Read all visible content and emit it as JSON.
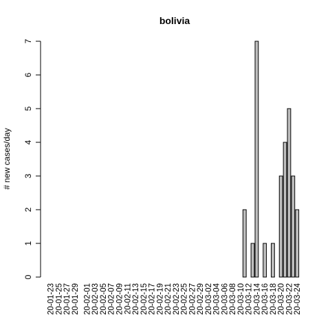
{
  "chart_data": {
    "type": "bar",
    "title": "bolivia",
    "xlabel": "",
    "ylabel": "# new cases/day",
    "ylim": [
      0,
      7
    ],
    "y_ticks": [
      0,
      1,
      2,
      3,
      4,
      5,
      6,
      7
    ],
    "grid": false,
    "categories": [
      "20-01-23",
      "20-01-24",
      "20-01-25",
      "20-01-26",
      "20-01-27",
      "20-01-28",
      "20-01-29",
      "20-01-30",
      "20-01-31",
      "20-02-01",
      "20-02-02",
      "20-02-03",
      "20-02-04",
      "20-02-05",
      "20-02-06",
      "20-02-07",
      "20-02-08",
      "20-02-09",
      "20-02-10",
      "20-02-11",
      "20-02-12",
      "20-02-13",
      "20-02-14",
      "20-02-15",
      "20-02-16",
      "20-02-17",
      "20-02-18",
      "20-02-19",
      "20-02-20",
      "20-02-21",
      "20-02-22",
      "20-02-23",
      "20-02-24",
      "20-02-25",
      "20-02-26",
      "20-02-27",
      "20-02-28",
      "20-02-29",
      "20-03-01",
      "20-03-02",
      "20-03-03",
      "20-03-04",
      "20-03-05",
      "20-03-06",
      "20-03-07",
      "20-03-08",
      "20-03-09",
      "20-03-10",
      "20-03-11",
      "20-03-12",
      "20-03-13",
      "20-03-14",
      "20-03-15",
      "20-03-16",
      "20-03-17",
      "20-03-18",
      "20-03-19",
      "20-03-20",
      "20-03-21",
      "20-03-22",
      "20-03-23",
      "20-03-24"
    ],
    "tick_labels_shown": [
      "20-01-23",
      "20-01-25",
      "20-01-27",
      "20-01-29",
      "20-02-01",
      "20-02-03",
      "20-02-05",
      "20-02-07",
      "20-02-09",
      "20-02-11",
      "20-02-13",
      "20-02-15",
      "20-02-17",
      "20-02-19",
      "20-02-21",
      "20-02-23",
      "20-02-25",
      "20-02-27",
      "20-02-29",
      "20-03-02",
      "20-03-04",
      "20-03-06",
      "20-03-08",
      "20-03-10",
      "20-03-12",
      "20-03-14",
      "20-03-16",
      "20-03-18",
      "20-03-20",
      "20-03-22",
      "20-03-24"
    ],
    "values": [
      0,
      0,
      0,
      0,
      0,
      0,
      0,
      0,
      0,
      0,
      0,
      0,
      0,
      0,
      0,
      0,
      0,
      0,
      0,
      0,
      0,
      0,
      0,
      0,
      0,
      0,
      0,
      0,
      0,
      0,
      0,
      0,
      0,
      0,
      0,
      0,
      0,
      0,
      0,
      0,
      0,
      0,
      0,
      0,
      0,
      0,
      0,
      0,
      2,
      0,
      1,
      7,
      0,
      1,
      0,
      1,
      0,
      3,
      4,
      5,
      3,
      2
    ]
  },
  "colors": {
    "bar_fill": "#bebebe",
    "bar_stroke": "#000000",
    "background": "#ffffff"
  }
}
